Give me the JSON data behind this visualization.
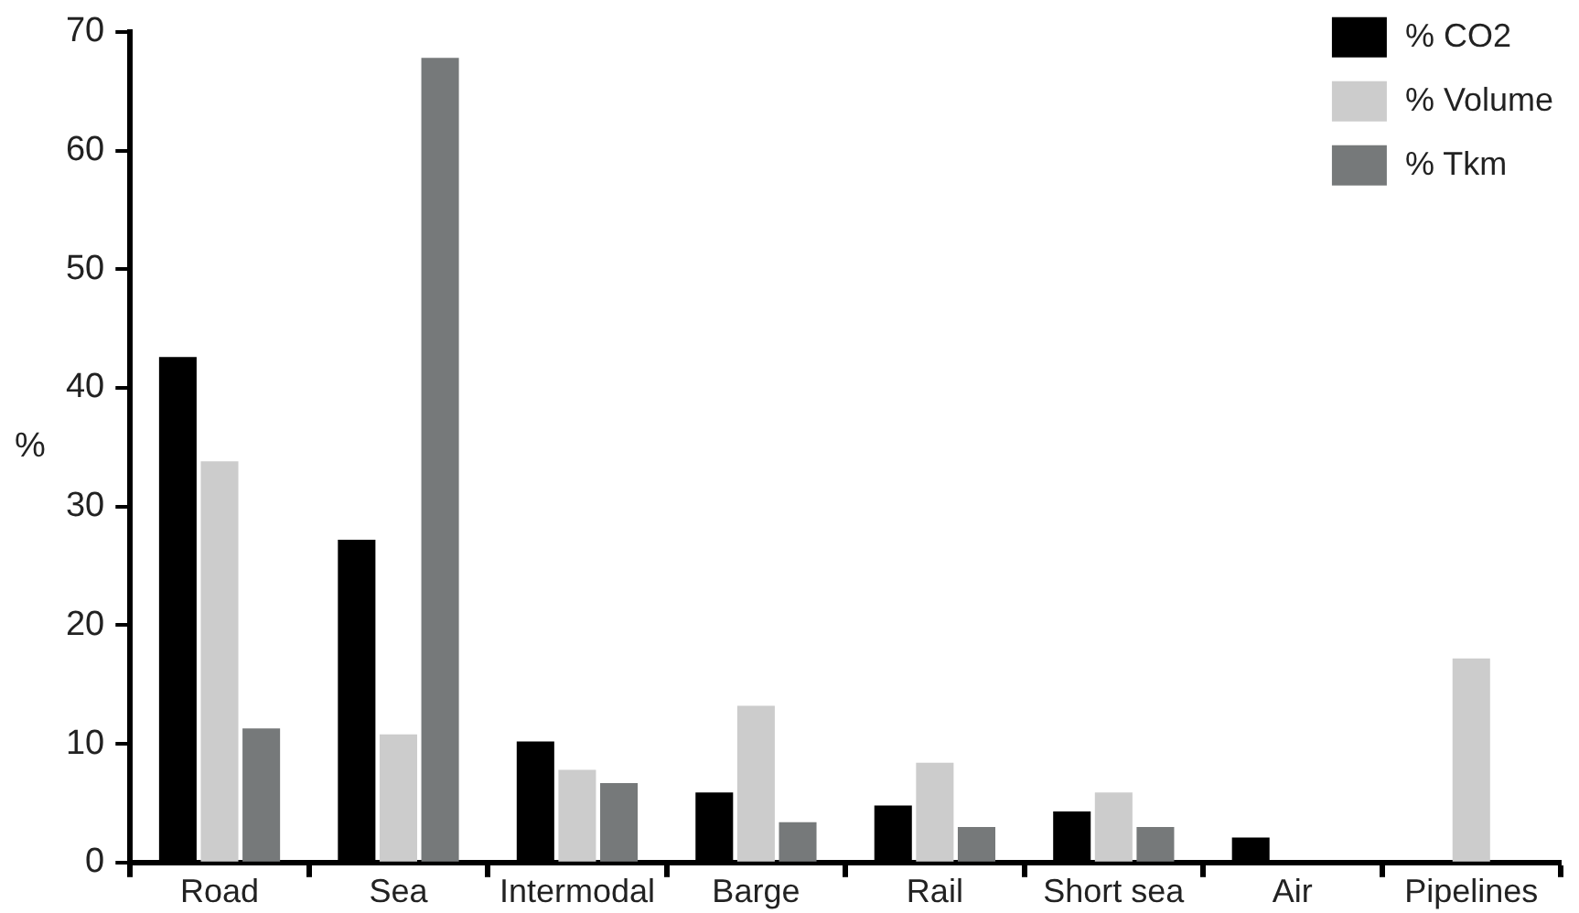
{
  "chart_data": {
    "type": "bar",
    "ylabel": "%",
    "categories": [
      "Road",
      "Sea",
      "Intermodal",
      "Barge",
      "Rail",
      "Short sea",
      "Air",
      "Pipelines"
    ],
    "series": [
      {
        "name": "% CO2",
        "color": "#000000",
        "values": [
          42.6,
          27.2,
          10.2,
          5.9,
          4.8,
          4.3,
          2.1,
          null
        ]
      },
      {
        "name": "% Volume",
        "color": "#cccccc",
        "values": [
          33.8,
          10.8,
          7.8,
          13.2,
          8.4,
          5.9,
          null,
          17.2
        ]
      },
      {
        "name": "% Tkm",
        "color": "#76797a",
        "values": [
          11.3,
          67.8,
          6.7,
          3.4,
          3.0,
          3.0,
          null,
          null
        ]
      }
    ],
    "ylim": [
      0,
      70
    ],
    "yticks": [
      0,
      10,
      20,
      30,
      40,
      50,
      60,
      70
    ],
    "legend": "top right",
    "grid": false
  }
}
